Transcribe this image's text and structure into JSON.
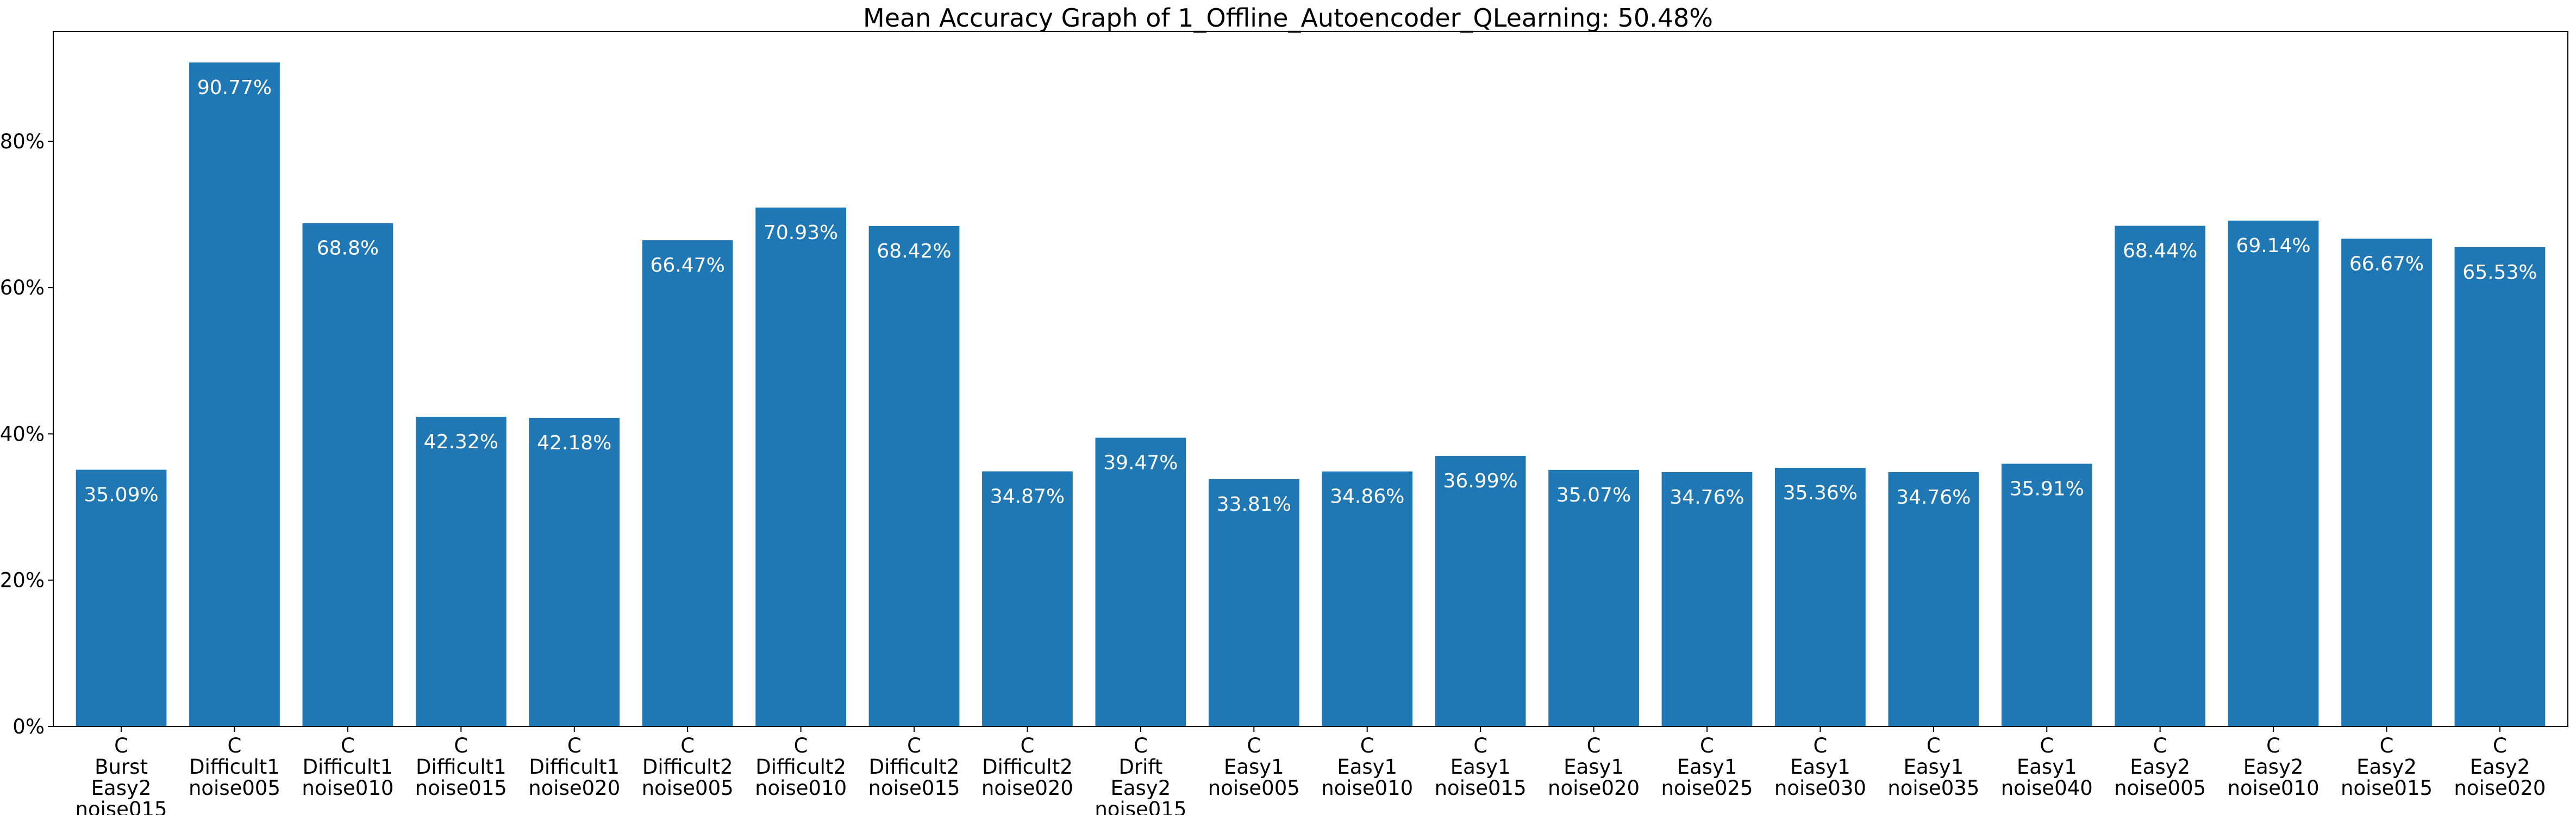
{
  "chart_data": {
    "type": "bar",
    "title": "Mean Accuracy Graph of 1_Offline_Autoencoder_QLearning: 50.48%",
    "xlabel": "",
    "ylabel": "",
    "ylim": [
      0,
      95
    ],
    "yticks": [
      0,
      20,
      40,
      60,
      80
    ],
    "ytick_labels": [
      "0%",
      "20%",
      "40%",
      "60%",
      "80%"
    ],
    "grid": false,
    "bar_color": "#1f77b4",
    "categories": [
      [
        "C",
        "Burst",
        "Easy2",
        "noise015"
      ],
      [
        "C",
        "Difficult1",
        "noise005"
      ],
      [
        "C",
        "Difficult1",
        "noise010"
      ],
      [
        "C",
        "Difficult1",
        "noise015"
      ],
      [
        "C",
        "Difficult1",
        "noise020"
      ],
      [
        "C",
        "Difficult2",
        "noise005"
      ],
      [
        "C",
        "Difficult2",
        "noise010"
      ],
      [
        "C",
        "Difficult2",
        "noise015"
      ],
      [
        "C",
        "Difficult2",
        "noise020"
      ],
      [
        "C",
        "Drift",
        "Easy2",
        "noise015"
      ],
      [
        "C",
        "Easy1",
        "noise005"
      ],
      [
        "C",
        "Easy1",
        "noise010"
      ],
      [
        "C",
        "Easy1",
        "noise015"
      ],
      [
        "C",
        "Easy1",
        "noise020"
      ],
      [
        "C",
        "Easy1",
        "noise025"
      ],
      [
        "C",
        "Easy1",
        "noise030"
      ],
      [
        "C",
        "Easy1",
        "noise035"
      ],
      [
        "C",
        "Easy1",
        "noise040"
      ],
      [
        "C",
        "Easy2",
        "noise005"
      ],
      [
        "C",
        "Easy2",
        "noise010"
      ],
      [
        "C",
        "Easy2",
        "noise015"
      ],
      [
        "C",
        "Easy2",
        "noise020"
      ]
    ],
    "values": [
      35.09,
      90.77,
      68.8,
      42.32,
      42.18,
      66.47,
      70.93,
      68.42,
      34.87,
      39.47,
      33.81,
      34.86,
      36.99,
      35.07,
      34.76,
      35.36,
      34.76,
      35.91,
      68.44,
      69.14,
      66.67,
      65.53
    ],
    "value_labels": [
      "35.09%",
      "90.77%",
      "68.8%",
      "42.32%",
      "42.18%",
      "66.47%",
      "70.93%",
      "68.42%",
      "34.87%",
      "39.47%",
      "33.81%",
      "34.86%",
      "36.99%",
      "35.07%",
      "34.76%",
      "35.36%",
      "34.76%",
      "35.91%",
      "68.44%",
      "69.14%",
      "66.67%",
      "65.53%"
    ]
  }
}
